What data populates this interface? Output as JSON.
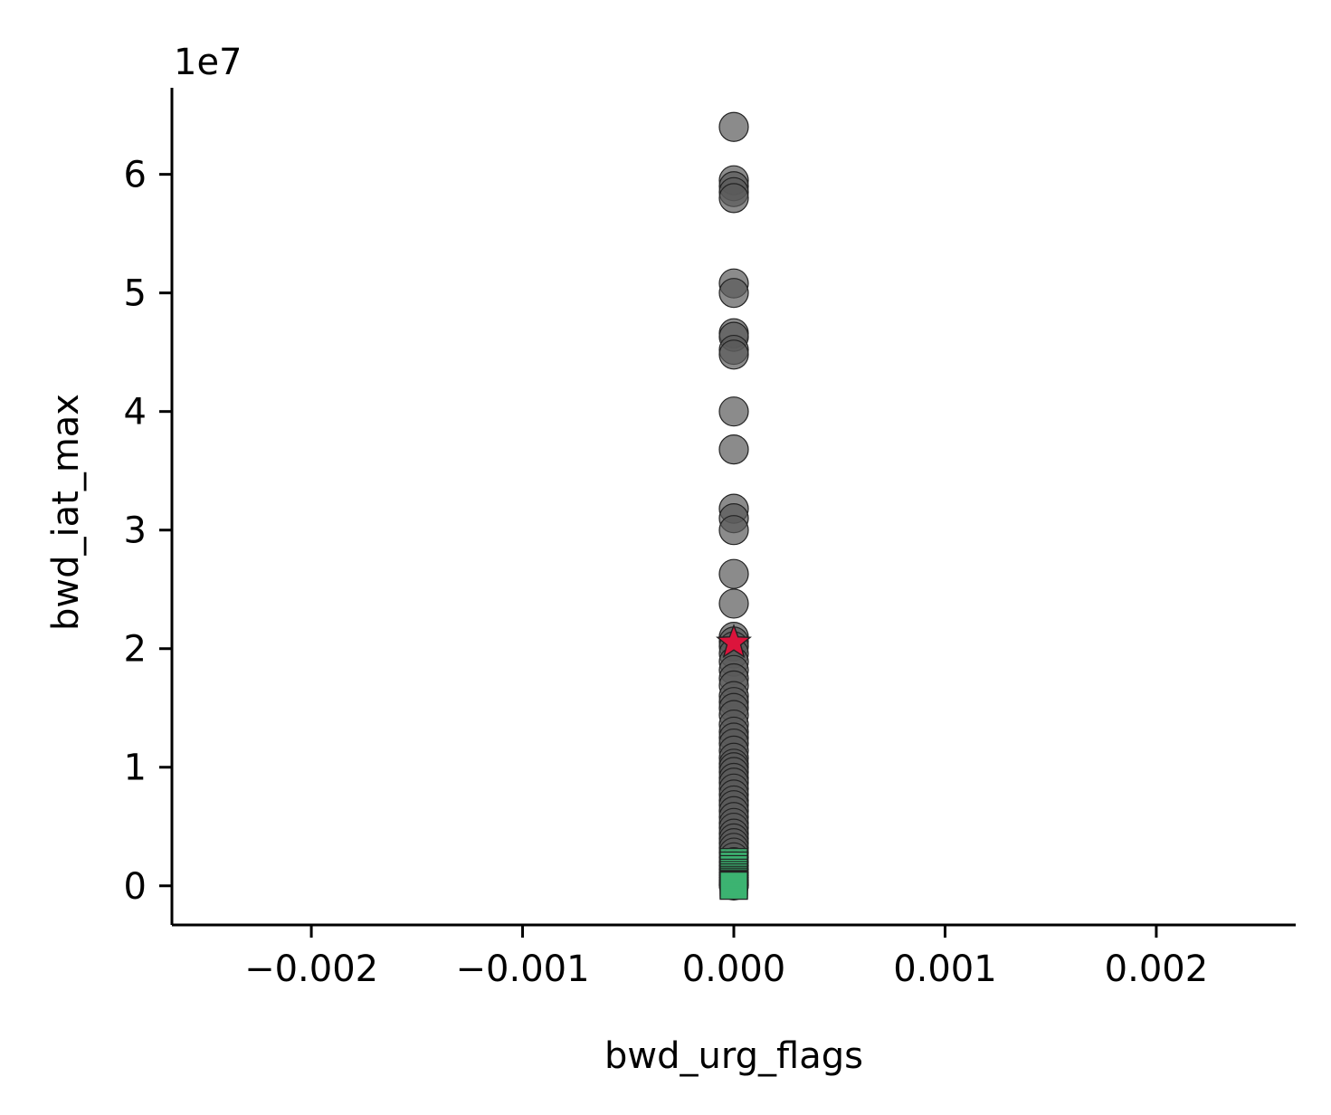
{
  "chart_data": {
    "type": "scatter",
    "title": "",
    "xlabel": "bwd_urg_flags",
    "ylabel": "bwd_iat_max",
    "y_offset_label": "1e7",
    "xlim": [
      -0.00266,
      0.00266
    ],
    "ylim": [
      -3300000,
      67300000
    ],
    "x_ticks": [
      -0.002,
      -0.001,
      0.0,
      0.001,
      0.002
    ],
    "x_tick_labels": [
      "−0.002",
      "−0.001",
      "0.000",
      "0.001",
      "0.002"
    ],
    "y_ticks": [
      0,
      10000000,
      20000000,
      30000000,
      40000000,
      50000000,
      60000000
    ],
    "y_tick_labels": [
      "0",
      "1",
      "2",
      "3",
      "4",
      "5",
      "6"
    ],
    "grid": false,
    "series": [
      {
        "marker": "circle",
        "color": "#5a5a5a",
        "x": [
          0,
          0,
          0,
          0,
          0,
          0,
          0,
          0,
          0,
          0,
          0,
          0,
          0,
          0,
          0,
          0,
          0,
          0,
          0,
          0,
          0,
          0,
          0,
          0,
          0,
          0,
          0,
          0,
          0,
          0,
          0,
          0,
          0,
          0,
          0,
          0,
          0,
          0,
          0,
          0,
          0,
          0,
          0,
          0,
          0,
          0,
          0,
          0,
          0,
          0,
          0,
          0,
          0,
          0,
          0,
          0,
          0,
          0,
          0,
          0,
          0,
          0,
          0,
          0,
          0,
          0,
          0
        ],
        "y": [
          64000000,
          59500000,
          59000000,
          58500000,
          58000000,
          50800000,
          50000000,
          46600000,
          46300000,
          45200000,
          44800000,
          40000000,
          36800000,
          31800000,
          31000000,
          30000000,
          26300000,
          23800000,
          21000000,
          20600000,
          20200000,
          19600000,
          18900000,
          18200000,
          17500000,
          16900000,
          16000000,
          15500000,
          15000000,
          14400000,
          13600000,
          13000000,
          12500000,
          12000000,
          11400000,
          10800000,
          10300000,
          10000000,
          9600000,
          9100000,
          8700000,
          8200000,
          7700000,
          7200000,
          6800000,
          6300000,
          5800000,
          5300000,
          4900000,
          4400000,
          4000000,
          3600000,
          3200000,
          2800000,
          2400000,
          2000000,
          1700000,
          1400000,
          1100000,
          900000,
          700000,
          500000,
          350000,
          250000,
          150000,
          80000,
          30000
        ]
      },
      {
        "marker": "square",
        "color": "#3cb371",
        "x": [
          0,
          0,
          0,
          0,
          0,
          0,
          0,
          0,
          0,
          0,
          0,
          0
        ],
        "y": [
          2000000,
          1700000,
          1400000,
          1100000,
          900000,
          700000,
          500000,
          350000,
          200000,
          100000,
          50000,
          10000
        ]
      },
      {
        "marker": "star",
        "color": "#dc143c",
        "x": [
          0
        ],
        "y": [
          20500000
        ]
      }
    ]
  }
}
